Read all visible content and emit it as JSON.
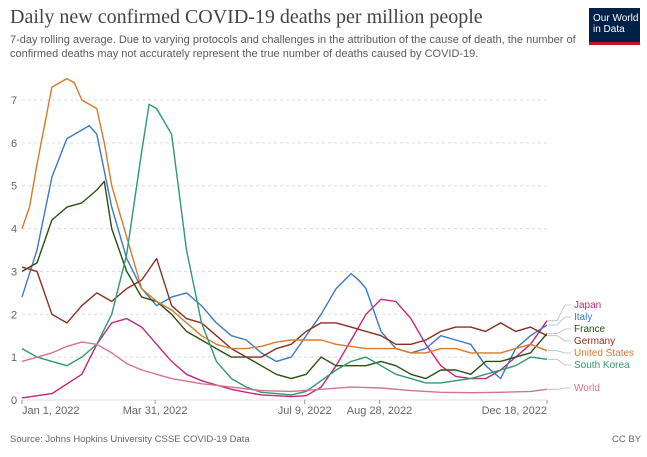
{
  "title": "Daily new confirmed COVID-19 deaths per million people",
  "subtitle": "7-day rolling average. Due to varying protocols and challenges in the attribution of the cause of death, the number of confirmed deaths may not accurately represent the true number of deaths caused by COVID-19.",
  "logo": {
    "line1": "Our World",
    "line2": "in Data"
  },
  "footer": {
    "source": "Source: Johns Hopkins University CSSE COVID-19 Data",
    "license": "CC BY"
  },
  "colors": {
    "Japan": "#c6267d",
    "Italy": "#3e78c7",
    "France": "#2b4f10",
    "Germany": "#8a2f22",
    "United States": "#d97a2c",
    "South Korea": "#2f9a6e",
    "World": "#d4748c"
  },
  "chart_data": {
    "type": "line",
    "x_ticks": [
      "Jan 1, 2022",
      "Mar 31, 2022",
      "Jul 9, 2022",
      "Aug 28, 2022",
      "Dec 18, 2022"
    ],
    "x_tick_days": [
      0,
      89,
      189,
      239,
      351
    ],
    "y_ticks": [
      0,
      1,
      2,
      3,
      4,
      5,
      6,
      7
    ],
    "ylim": [
      0,
      7
    ],
    "grid": true,
    "legend_position": "right",
    "series": [
      {
        "name": "Japan",
        "x": [
          0,
          20,
          40,
          50,
          60,
          70,
          80,
          90,
          100,
          110,
          120,
          130,
          140,
          150,
          160,
          170,
          180,
          190,
          200,
          210,
          220,
          230,
          240,
          250,
          260,
          270,
          280,
          290,
          300,
          310,
          320,
          330,
          340,
          351
        ],
        "y": [
          0.05,
          0.15,
          0.6,
          1.3,
          1.8,
          1.9,
          1.7,
          1.3,
          0.9,
          0.6,
          0.45,
          0.35,
          0.25,
          0.18,
          0.12,
          0.1,
          0.08,
          0.1,
          0.3,
          0.8,
          1.4,
          2.0,
          2.35,
          2.3,
          1.9,
          1.3,
          0.8,
          0.55,
          0.5,
          0.5,
          0.7,
          1.0,
          1.3,
          1.85
        ]
      },
      {
        "name": "Italy",
        "x": [
          0,
          10,
          20,
          30,
          40,
          45,
          50,
          60,
          70,
          80,
          90,
          100,
          110,
          120,
          130,
          140,
          150,
          160,
          170,
          180,
          190,
          200,
          210,
          220,
          225,
          230,
          240,
          250,
          260,
          270,
          280,
          290,
          300,
          310,
          320,
          330,
          340,
          351
        ],
        "y": [
          2.4,
          3.5,
          5.2,
          6.1,
          6.3,
          6.4,
          6.2,
          4.5,
          3.3,
          2.6,
          2.2,
          2.4,
          2.5,
          2.2,
          1.8,
          1.5,
          1.4,
          1.1,
          0.9,
          1.0,
          1.5,
          2.0,
          2.6,
          2.95,
          2.8,
          2.6,
          1.6,
          1.2,
          1.1,
          1.2,
          1.5,
          1.4,
          1.3,
          0.8,
          0.5,
          1.2,
          1.5,
          1.75
        ]
      },
      {
        "name": "France",
        "x": [
          0,
          10,
          20,
          30,
          40,
          50,
          55,
          60,
          70,
          80,
          90,
          100,
          110,
          120,
          130,
          140,
          150,
          160,
          170,
          180,
          190,
          200,
          210,
          220,
          230,
          240,
          250,
          260,
          270,
          280,
          290,
          300,
          310,
          320,
          330,
          340,
          351
        ],
        "y": [
          3.0,
          3.2,
          4.2,
          4.5,
          4.6,
          4.9,
          5.1,
          4.0,
          3.0,
          2.4,
          2.3,
          2.0,
          1.6,
          1.4,
          1.2,
          1.0,
          1.0,
          0.8,
          0.6,
          0.5,
          0.6,
          1.0,
          0.8,
          0.8,
          0.8,
          0.9,
          0.8,
          0.6,
          0.5,
          0.7,
          0.7,
          0.6,
          0.9,
          0.9,
          1.0,
          1.1,
          1.55
        ]
      },
      {
        "name": "Germany",
        "x": [
          0,
          10,
          20,
          30,
          40,
          50,
          60,
          70,
          80,
          90,
          100,
          110,
          120,
          130,
          140,
          150,
          160,
          170,
          180,
          190,
          200,
          210,
          220,
          230,
          240,
          250,
          260,
          270,
          280,
          290,
          300,
          310,
          320,
          330,
          340,
          351
        ],
        "y": [
          3.1,
          3.0,
          2.0,
          1.8,
          2.2,
          2.5,
          2.3,
          2.6,
          2.8,
          3.3,
          2.2,
          1.9,
          1.8,
          1.5,
          1.2,
          1.0,
          1.0,
          1.2,
          1.3,
          1.6,
          1.8,
          1.8,
          1.7,
          1.6,
          1.5,
          1.3,
          1.3,
          1.4,
          1.6,
          1.7,
          1.7,
          1.6,
          1.8,
          1.6,
          1.7,
          1.5
        ]
      },
      {
        "name": "United States",
        "x": [
          0,
          5,
          10,
          20,
          30,
          35,
          40,
          50,
          55,
          60,
          70,
          80,
          90,
          100,
          110,
          120,
          130,
          140,
          150,
          160,
          170,
          180,
          190,
          200,
          210,
          220,
          230,
          240,
          250,
          260,
          270,
          280,
          290,
          300,
          310,
          320,
          330,
          340,
          351
        ],
        "y": [
          4.0,
          4.5,
          5.5,
          7.3,
          7.5,
          7.4,
          7.0,
          6.8,
          6.0,
          5.0,
          3.8,
          2.6,
          2.3,
          2.1,
          1.8,
          1.5,
          1.3,
          1.2,
          1.2,
          1.25,
          1.35,
          1.4,
          1.4,
          1.4,
          1.3,
          1.25,
          1.2,
          1.2,
          1.2,
          1.1,
          1.1,
          1.2,
          1.2,
          1.1,
          1.1,
          1.1,
          1.2,
          1.3,
          1.15
        ]
      },
      {
        "name": "South Korea",
        "x": [
          0,
          10,
          20,
          30,
          40,
          50,
          60,
          70,
          80,
          85,
          90,
          95,
          100,
          110,
          120,
          130,
          140,
          150,
          160,
          170,
          180,
          190,
          200,
          210,
          220,
          230,
          240,
          250,
          260,
          270,
          280,
          290,
          300,
          310,
          320,
          330,
          340,
          351
        ],
        "y": [
          1.2,
          1.0,
          0.9,
          0.8,
          1.0,
          1.3,
          2.0,
          3.4,
          5.8,
          6.9,
          6.8,
          6.5,
          6.2,
          3.5,
          1.8,
          0.9,
          0.5,
          0.3,
          0.18,
          0.15,
          0.12,
          0.2,
          0.45,
          0.7,
          0.9,
          1.0,
          0.8,
          0.6,
          0.5,
          0.4,
          0.4,
          0.45,
          0.5,
          0.6,
          0.7,
          0.8,
          1.0,
          0.95
        ]
      },
      {
        "name": "World",
        "x": [
          0,
          20,
          30,
          40,
          50,
          60,
          70,
          80,
          90,
          100,
          120,
          140,
          160,
          180,
          200,
          220,
          240,
          260,
          280,
          300,
          320,
          340,
          351
        ],
        "y": [
          0.9,
          1.1,
          1.25,
          1.35,
          1.3,
          1.1,
          0.85,
          0.7,
          0.6,
          0.5,
          0.38,
          0.3,
          0.22,
          0.2,
          0.25,
          0.3,
          0.28,
          0.22,
          0.18,
          0.17,
          0.18,
          0.2,
          0.25
        ]
      }
    ]
  }
}
